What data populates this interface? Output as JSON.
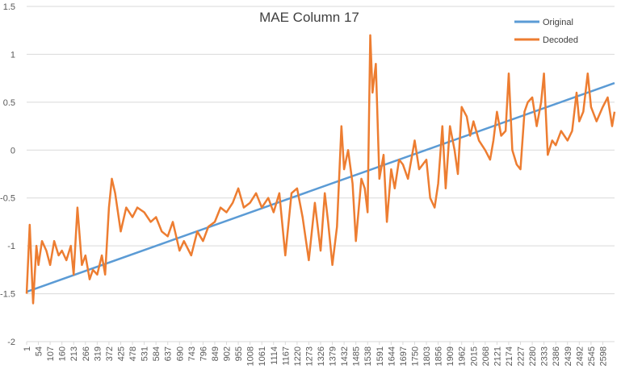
{
  "chart_data": {
    "type": "line",
    "title": "MAE Column 17",
    "xlabel": "",
    "ylabel": "",
    "ylim": [
      -2,
      1.5
    ],
    "yticks": [
      -2,
      -1.5,
      -1,
      -0.5,
      0,
      0.5,
      1,
      1.5
    ],
    "xlim": [
      1,
      2651
    ],
    "xticks": [
      1,
      54,
      107,
      160,
      213,
      266,
      319,
      372,
      425,
      478,
      531,
      584,
      637,
      690,
      743,
      796,
      849,
      902,
      955,
      1008,
      1061,
      1114,
      1167,
      1220,
      1273,
      1326,
      1379,
      1432,
      1485,
      1538,
      1591,
      1644,
      1697,
      1750,
      1803,
      1856,
      1909,
      1962,
      2015,
      2068,
      2121,
      2174,
      2227,
      2280,
      2333,
      2386,
      2439,
      2492,
      2545,
      2598
    ],
    "grid": "horizontal",
    "legend_position": "top-right",
    "series": [
      {
        "name": "Original",
        "color": "#5B9BD5",
        "x": [
          1,
          2651
        ],
        "y": [
          -1.48,
          0.7
        ]
      },
      {
        "name": "Decoded",
        "color": "#ED7D31",
        "x": [
          1,
          15,
          30,
          45,
          54,
          70,
          90,
          107,
          125,
          145,
          160,
          180,
          200,
          213,
          230,
          250,
          266,
          285,
          300,
          319,
          340,
          355,
          372,
          385,
          400,
          425,
          450,
          478,
          500,
          531,
          560,
          584,
          610,
          637,
          660,
          690,
          710,
          743,
          770,
          796,
          820,
          849,
          875,
          902,
          930,
          955,
          980,
          1008,
          1035,
          1061,
          1090,
          1114,
          1140,
          1167,
          1195,
          1220,
          1245,
          1273,
          1300,
          1326,
          1345,
          1360,
          1379,
          1400,
          1420,
          1432,
          1450,
          1470,
          1485,
          1510,
          1525,
          1538,
          1550,
          1560,
          1575,
          1591,
          1610,
          1625,
          1644,
          1660,
          1680,
          1697,
          1720,
          1750,
          1770,
          1803,
          1820,
          1840,
          1856,
          1875,
          1890,
          1909,
          1930,
          1945,
          1962,
          1985,
          2000,
          2015,
          2040,
          2068,
          2090,
          2105,
          2121,
          2140,
          2160,
          2174,
          2190,
          2210,
          2227,
          2245,
          2260,
          2280,
          2300,
          2320,
          2333,
          2350,
          2370,
          2386,
          2410,
          2439,
          2460,
          2480,
          2492,
          2510,
          2530,
          2545,
          2570,
          2598,
          2620,
          2640,
          2651
        ],
        "y": [
          -1.5,
          -0.78,
          -1.6,
          -1.0,
          -1.2,
          -0.95,
          -1.05,
          -1.2,
          -0.95,
          -1.1,
          -1.05,
          -1.15,
          -1.0,
          -1.3,
          -0.6,
          -1.2,
          -1.1,
          -1.35,
          -1.25,
          -1.3,
          -1.1,
          -1.3,
          -0.6,
          -0.3,
          -0.45,
          -0.85,
          -0.6,
          -0.7,
          -0.6,
          -0.65,
          -0.75,
          -0.7,
          -0.85,
          -0.9,
          -0.75,
          -1.05,
          -0.95,
          -1.1,
          -0.85,
          -0.95,
          -0.8,
          -0.75,
          -0.6,
          -0.65,
          -0.55,
          -0.4,
          -0.6,
          -0.55,
          -0.45,
          -0.6,
          -0.5,
          -0.65,
          -0.45,
          -1.1,
          -0.45,
          -0.4,
          -0.7,
          -1.15,
          -0.55,
          -1.05,
          -0.45,
          -0.75,
          -1.2,
          -0.8,
          0.25,
          -0.2,
          0.0,
          -0.35,
          -0.95,
          -0.3,
          -0.4,
          -0.65,
          1.2,
          0.6,
          0.9,
          -0.3,
          -0.05,
          -0.75,
          -0.2,
          -0.4,
          -0.1,
          -0.15,
          -0.3,
          0.1,
          -0.2,
          -0.1,
          -0.5,
          -0.6,
          -0.35,
          0.25,
          -0.4,
          0.25,
          0.0,
          -0.25,
          0.45,
          0.35,
          0.15,
          0.3,
          0.1,
          0.0,
          -0.1,
          0.1,
          0.4,
          0.15,
          0.2,
          0.8,
          0.0,
          -0.15,
          -0.2,
          0.4,
          0.5,
          0.55,
          0.25,
          0.5,
          0.8,
          -0.05,
          0.1,
          0.05,
          0.2,
          0.1,
          0.2,
          0.6,
          0.3,
          0.4,
          0.8,
          0.45,
          0.3,
          0.45,
          0.55,
          0.25,
          0.4
        ]
      }
    ]
  }
}
